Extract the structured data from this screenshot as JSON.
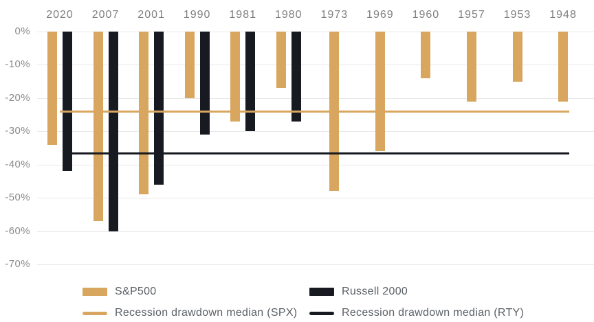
{
  "chart_data": {
    "type": "bar",
    "title": "",
    "orientation": "vertical-negative",
    "categories": [
      "2020",
      "2007",
      "2001",
      "1990",
      "1981",
      "1980",
      "1973",
      "1969",
      "1960",
      "1957",
      "1953",
      "1948"
    ],
    "series": [
      {
        "name": "S&P500",
        "color": "#d8a65f",
        "values": [
          -34,
          -57,
          -49,
          -20,
          -27,
          -17,
          -48,
          -36,
          -14,
          -21,
          -15,
          -21
        ]
      },
      {
        "name": "Russell 2000",
        "color": "#171a21",
        "values": [
          -42,
          -60,
          -46,
          -31,
          -30,
          -27,
          null,
          null,
          null,
          null,
          null,
          null
        ]
      }
    ],
    "reference_lines": [
      {
        "name": "Recession drawdown median (SPX)",
        "value": -24,
        "color": "#d8a65f"
      },
      {
        "name": "Recession drawdown median (RTY)",
        "value": -36.5,
        "color": "#171a21"
      }
    ],
    "y_ticks": [
      "0%",
      "-10%",
      "-20%",
      "-30%",
      "-40%",
      "-50%",
      "-60%",
      "-70%"
    ],
    "ylim": [
      -70,
      0
    ],
    "unit": "%",
    "grid": true,
    "x_axis_position": "top",
    "legend_position": "bottom"
  }
}
